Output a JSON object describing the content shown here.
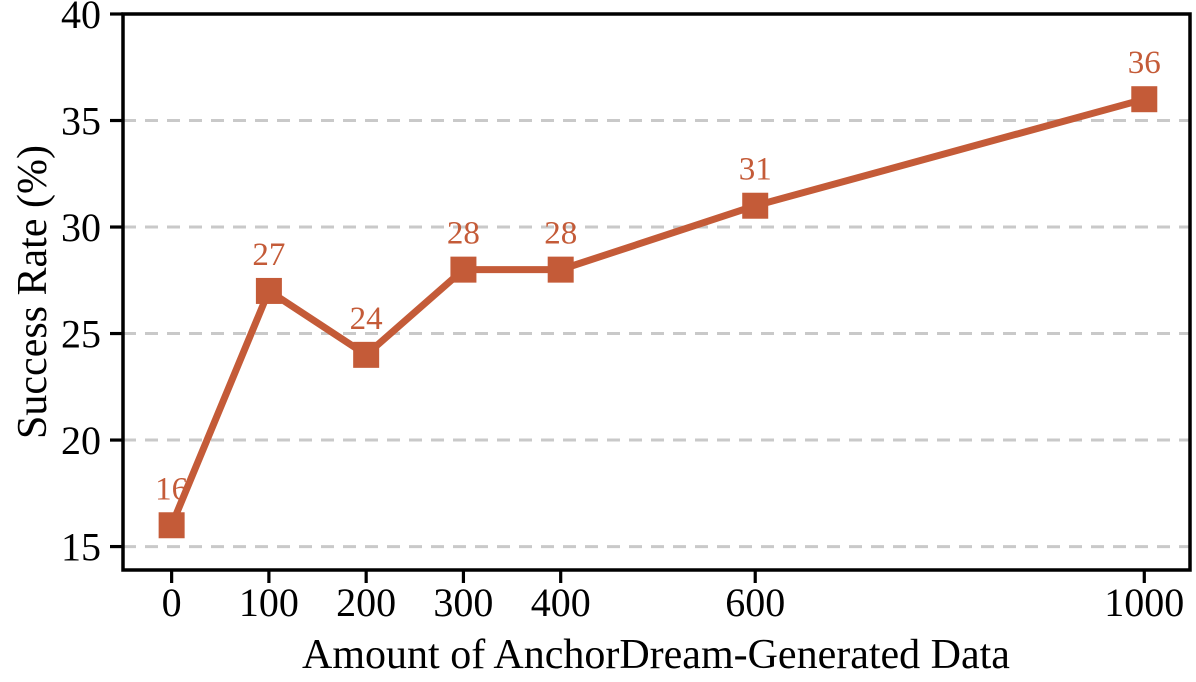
{
  "chart_data": {
    "type": "line",
    "title": "",
    "xlabel": "Amount of AnchorDream-Generated Data",
    "ylabel": "Success Rate (%)",
    "x": [
      0,
      100,
      200,
      300,
      400,
      600,
      1000
    ],
    "series": [
      {
        "name": "Success Rate",
        "values": [
          16,
          27,
          24,
          28,
          28,
          31,
          36
        ],
        "data_labels": [
          "16",
          "27",
          "24",
          "28",
          "28",
          "31",
          "36"
        ],
        "color": "#C45B38",
        "marker": "square"
      }
    ],
    "xticks": [
      0,
      100,
      200,
      300,
      400,
      600,
      1000
    ],
    "xtick_labels": [
      "0",
      "100",
      "200",
      "300",
      "400",
      "600",
      "1000"
    ],
    "yticks": [
      15,
      20,
      25,
      30,
      35,
      40
    ],
    "ytick_labels": [
      "15",
      "20",
      "25",
      "30",
      "35",
      "40"
    ],
    "xlim": [
      -50,
      1047
    ],
    "ylim": [
      13.9,
      40
    ],
    "grid": {
      "axis": "y",
      "style": "dashed",
      "color": "#C9C9C9"
    },
    "legend": "none",
    "colors": {
      "line": "#C45B38",
      "marker": "#C45B38",
      "annotation": "#C45B38",
      "grid": "#C9C9C9",
      "spine": "#000000",
      "background": "#ffffff"
    }
  }
}
